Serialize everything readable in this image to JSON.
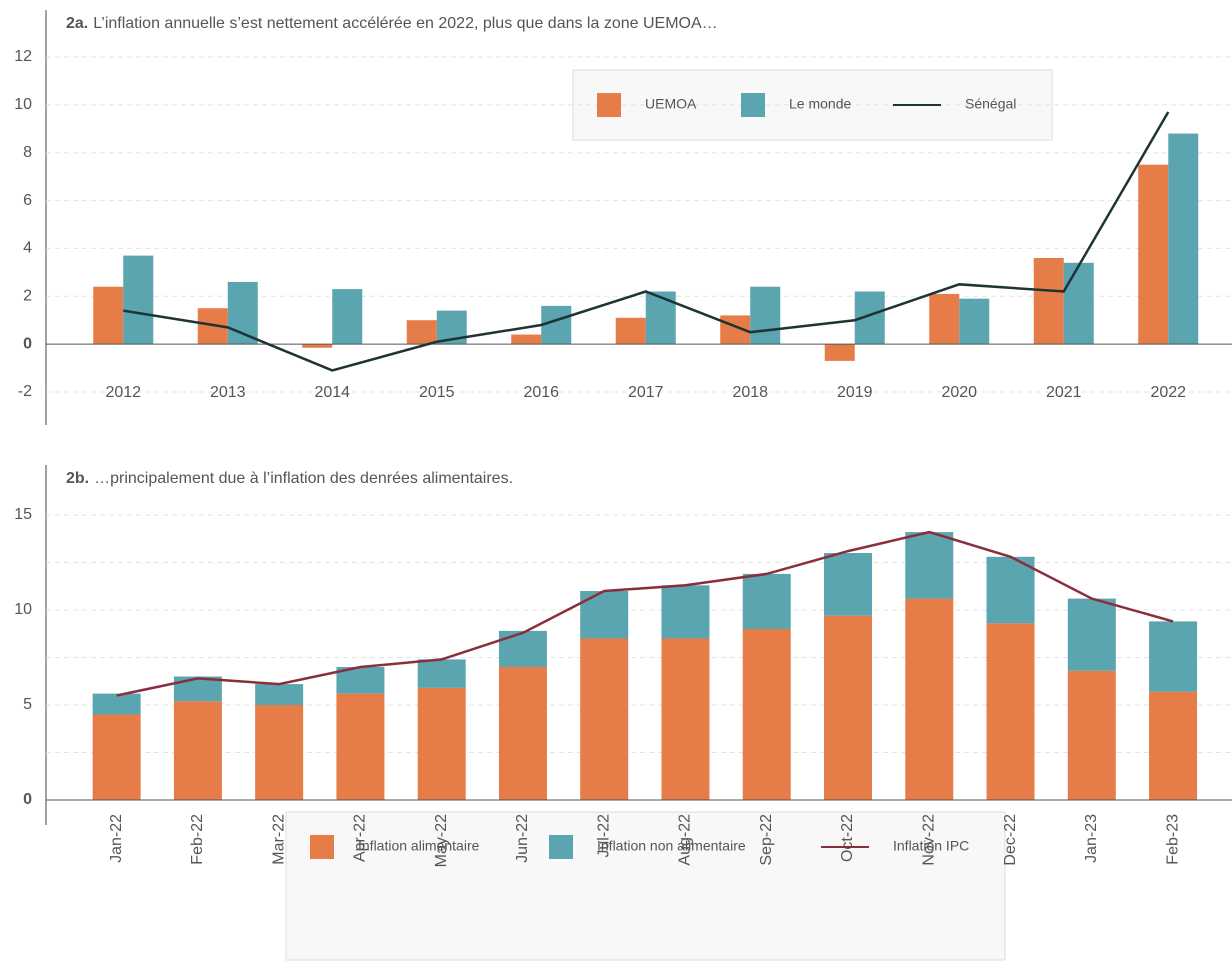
{
  "chart_data": [
    {
      "type": "bar",
      "title_label": "2a.",
      "title": "L’inflation annuelle s’est nettement accélérée en 2022, plus que dans la zone UEMOA…",
      "categories": [
        "2012",
        "2013",
        "2014",
        "2015",
        "2016",
        "2017",
        "2018",
        "2019",
        "2020",
        "2021",
        "2022"
      ],
      "series": [
        {
          "name": "UEMOA",
          "type": "bar",
          "color": "#e67c47",
          "values": [
            2.4,
            1.5,
            -0.15,
            1.0,
            0.4,
            1.1,
            1.2,
            -0.7,
            2.1,
            3.6,
            7.5
          ]
        },
        {
          "name": "Le monde",
          "type": "bar",
          "color": "#5aa5b0",
          "values": [
            3.7,
            2.6,
            2.3,
            1.4,
            1.6,
            2.2,
            2.4,
            2.2,
            1.9,
            3.4,
            8.8
          ]
        },
        {
          "name": "Sénégal",
          "type": "line",
          "color": "#1e3334",
          "values": [
            1.4,
            0.7,
            -1.1,
            0.1,
            0.8,
            2.2,
            0.5,
            1.0,
            2.5,
            2.2,
            9.7
          ]
        }
      ],
      "ylim": [
        -2,
        12
      ],
      "yticks": [
        -2,
        0,
        2,
        4,
        6,
        8,
        10,
        12
      ],
      "grid": true
    },
    {
      "type": "stacked_bar",
      "title_label": "2b.",
      "title": "…principalement due à l’inflation des denrées alimentaires.",
      "categories": [
        "Jan-22",
        "Feb-22",
        "Mar-22",
        "Apr-22",
        "May-22",
        "Jun-22",
        "Jul-22",
        "Aug-22",
        "Sep-22",
        "Oct-22",
        "Nov-22",
        "Dec-22",
        "Jan-23",
        "Feb-23"
      ],
      "series": [
        {
          "name": "Inflation alimentaire",
          "type": "bar",
          "color": "#e67c47",
          "values": [
            4.5,
            5.2,
            5.0,
            5.6,
            5.9,
            7.0,
            8.5,
            8.5,
            9.0,
            9.7,
            10.6,
            9.3,
            6.8,
            5.7
          ]
        },
        {
          "name": "Inflation non alimentaire",
          "type": "bar",
          "color": "#5aa5b0",
          "values": [
            1.1,
            1.3,
            1.1,
            1.4,
            1.5,
            1.9,
            2.5,
            2.8,
            2.9,
            3.3,
            3.5,
            3.5,
            3.8,
            3.7
          ]
        },
        {
          "name": "Inflation IPC",
          "type": "line",
          "color": "#8b2e3c",
          "values": [
            5.5,
            6.4,
            6.1,
            7.0,
            7.4,
            8.8,
            11.0,
            11.3,
            11.9,
            13.1,
            14.1,
            12.8,
            10.6,
            9.4
          ]
        }
      ],
      "ylim": [
        0,
        17.5
      ],
      "yticks": [
        0,
        5,
        10,
        15
      ],
      "minor_yticks": [
        2.5,
        7.5,
        12.5
      ],
      "grid": true
    }
  ]
}
